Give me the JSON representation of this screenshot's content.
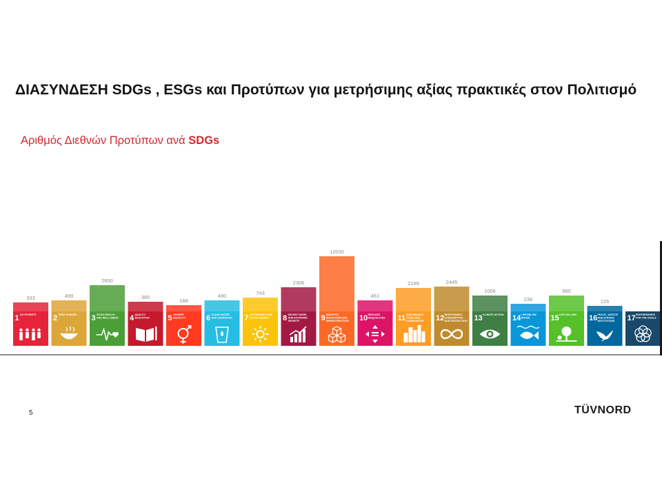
{
  "slide": {
    "title": "ΔΙΑΣΥΝΔΕΣΗ SDGs , ESGs και Προτύπων για μετρήσιμης αξίας πρακτικές στον Πολιτισμό",
    "subtitle_prefix": "Αριθμός Διεθνών Προτύπων ανά ",
    "subtitle_bold": "SDGs",
    "page_number": "5",
    "logo": {
      "part1": "TÜV",
      "part2": "NORD"
    }
  },
  "colors": {
    "subtitle": "#d2272e",
    "label": "#8a8a8a",
    "baseline": "#444444"
  },
  "chart_data": {
    "type": "bar",
    "title": "Αριθμός Διεθνών Προτύπων ανά SDGs",
    "categories": [
      "1",
      "2",
      "3",
      "4",
      "5",
      "6",
      "7",
      "8",
      "9",
      "10",
      "11",
      "12",
      "13",
      "14",
      "15",
      "16",
      "17"
    ],
    "values": [
      333,
      499,
      2650,
      385,
      168,
      490,
      743,
      2306,
      12030,
      461,
      2199,
      2445,
      1006,
      236,
      990,
      126,
      null
    ],
    "value_labels": [
      "333",
      "499",
      "2650",
      "385",
      "168",
      "490",
      "743",
      "2306",
      "12030",
      "461",
      "2199",
      "2445",
      "1006",
      "236",
      "990",
      "126",
      ""
    ],
    "scale": "sqrt",
    "tiles": [
      {
        "num": "1",
        "name": "NO POVERTY",
        "color": "#e5243b",
        "icon": "family-icon"
      },
      {
        "num": "2",
        "name": "ZERO HUNGER",
        "color": "#dda63a",
        "icon": "bowl-icon"
      },
      {
        "num": "3",
        "name": "GOOD HEALTH AND WELL-BEING",
        "color": "#4c9f38",
        "icon": "heartbeat-icon"
      },
      {
        "num": "4",
        "name": "QUALITY EDUCATION",
        "color": "#c5192d",
        "icon": "book-icon"
      },
      {
        "num": "5",
        "name": "GENDER EQUALITY",
        "color": "#ff3a21",
        "icon": "gender-icon"
      },
      {
        "num": "6",
        "name": "CLEAN WATER AND SANITATION",
        "color": "#26bde2",
        "icon": "water-icon"
      },
      {
        "num": "7",
        "name": "AFFORDABLE AND CLEAN ENERGY",
        "color": "#fcc30b",
        "icon": "sun-icon"
      },
      {
        "num": "8",
        "name": "DECENT WORK AND ECONOMIC GROWTH",
        "color": "#a21942",
        "icon": "growth-chart-icon"
      },
      {
        "num": "9",
        "name": "INDUSTRY, INNOVATION AND INFRASTRUCTURE",
        "color": "#fd6925",
        "icon": "cubes-icon"
      },
      {
        "num": "10",
        "name": "REDUCED INEQUALITIES",
        "color": "#dd1367",
        "icon": "equality-icon"
      },
      {
        "num": "11",
        "name": "SUSTAINABLE CITIES AND COMMUNITIES",
        "color": "#fd9d24",
        "icon": "city-icon"
      },
      {
        "num": "12",
        "name": "RESPONSIBLE CONSUMPTION AND PRODUCTION",
        "color": "#bf8b2e",
        "icon": "infinity-icon"
      },
      {
        "num": "13",
        "name": "CLIMATE ACTION",
        "color": "#3f7e44",
        "icon": "eye-globe-icon"
      },
      {
        "num": "14",
        "name": "LIFE BELOW WATER",
        "color": "#0a97d9",
        "icon": "fish-icon"
      },
      {
        "num": "15",
        "name": "LIFE ON LAND",
        "color": "#56c02b",
        "icon": "tree-icon"
      },
      {
        "num": "16",
        "name": "PEACE, JUSTICE AND STRONG INSTITUTIONS",
        "color": "#00689d",
        "icon": "dove-icon"
      },
      {
        "num": "17",
        "name": "PARTNERSHIPS FOR THE GOALS",
        "color": "#19486a",
        "icon": "flower-icon"
      }
    ]
  }
}
